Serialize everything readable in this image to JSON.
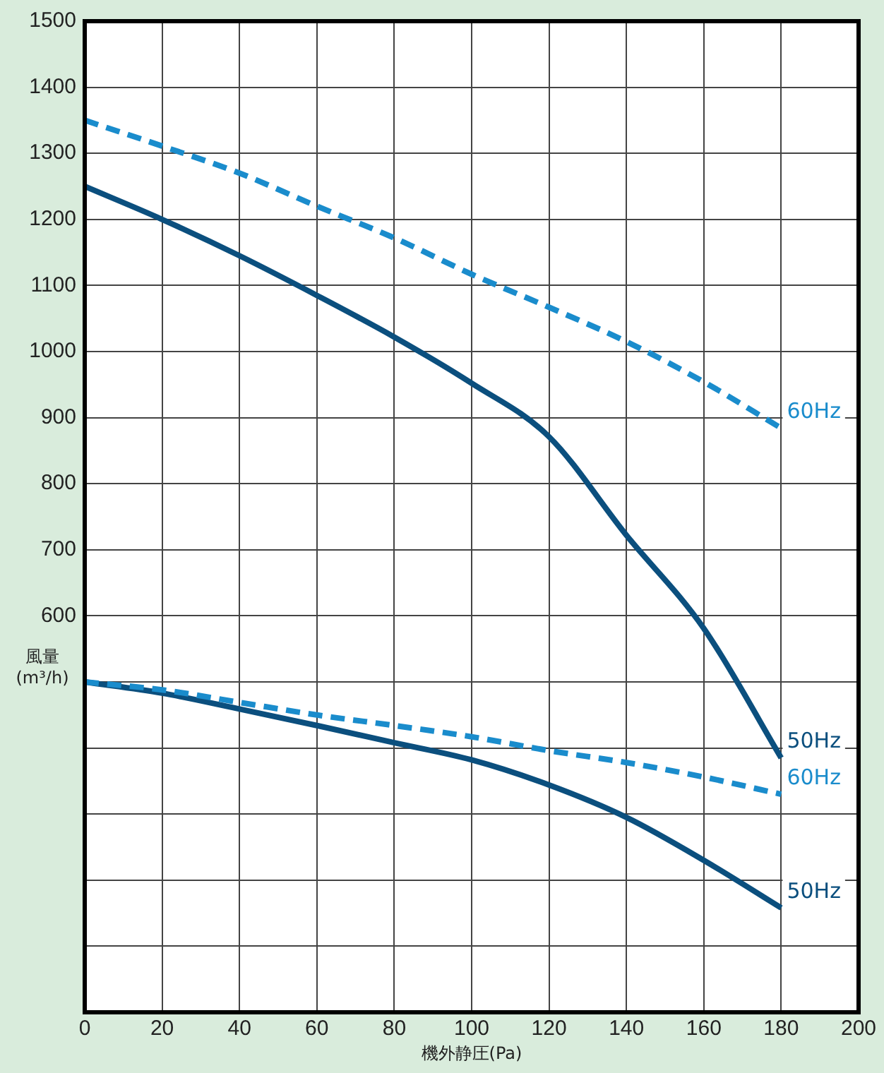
{
  "chart_data": {
    "type": "line",
    "xlabel": "機外静圧(Pa)",
    "ylabel": "風量(m³/h)",
    "x": [
      0,
      20,
      40,
      60,
      80,
      100,
      120,
      140,
      160,
      180
    ],
    "series": [
      {
        "name": "60Hz",
        "color": "#1a8ccc",
        "line_style": "dashed",
        "values": [
          1350,
          1311,
          1270,
          1220,
          1172,
          1117,
          1067,
          1015,
          954,
          884
        ]
      },
      {
        "name": "50Hz",
        "color": "#0b4f7e",
        "line_style": "solid",
        "values": [
          1250,
          1200,
          1145,
          1085,
          1022,
          952,
          871,
          722,
          581,
          385
        ]
      },
      {
        "name": "60Hz",
        "color": "#1a8ccc",
        "line_style": "dashed",
        "values": [
          500,
          488,
          469,
          450,
          434,
          417,
          396,
          378,
          356,
          330
        ]
      },
      {
        "name": "50Hz",
        "color": "#0b4f7e",
        "line_style": "solid",
        "values": [
          500,
          483,
          459,
          434,
          408,
          382,
          344,
          295,
          230,
          158
        ]
      }
    ],
    "xlim": [
      0,
      200
    ],
    "xticks": [
      0,
      20,
      40,
      60,
      80,
      100,
      120,
      140,
      160,
      180,
      200
    ],
    "ylim": [
      0,
      1500
    ],
    "yticks": [
      {
        "value": 0,
        "label": null
      },
      {
        "value": 100,
        "label": null
      },
      {
        "value": 200,
        "label": null
      },
      {
        "value": 300,
        "label": null
      },
      {
        "value": 400,
        "label": null
      },
      {
        "value": 500,
        "label": null
      },
      600,
      700,
      800,
      900,
      1000,
      1100,
      1200,
      1300,
      1400,
      1500
    ],
    "grid": true,
    "legend": false,
    "marker": "none"
  }
}
